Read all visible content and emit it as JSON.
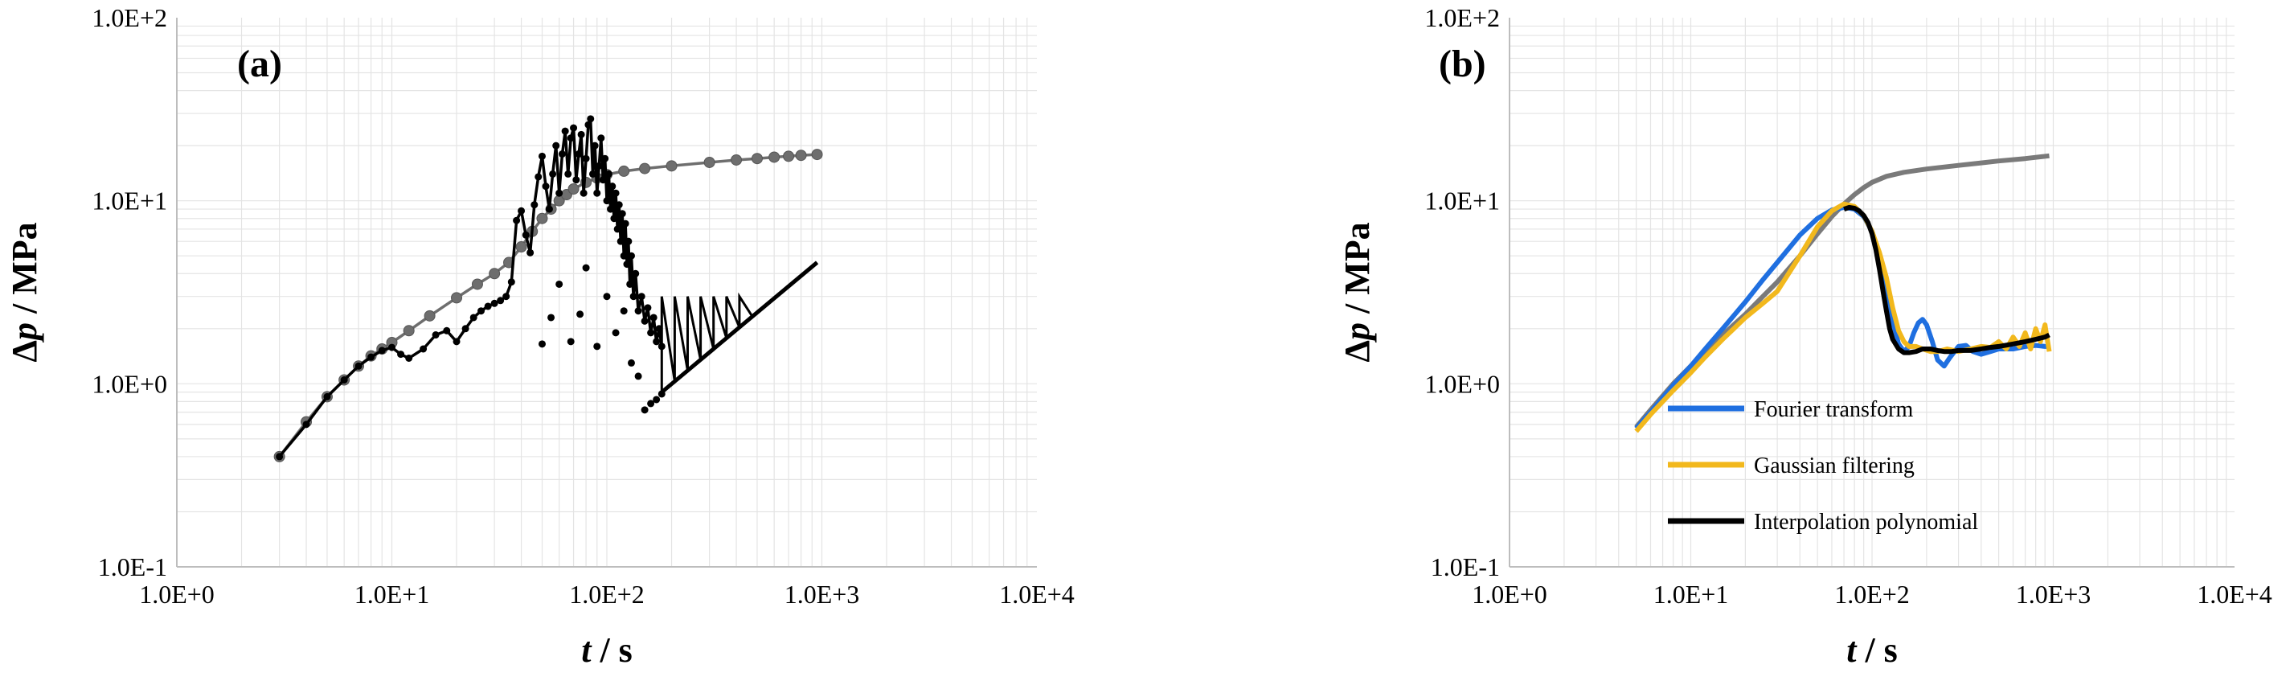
{
  "chart_data": [
    {
      "type": "line",
      "panel_label": "(a)",
      "xlabel": {
        "italic": "t",
        "rest": " / s"
      },
      "ylabel": {
        "prefix": "Δ",
        "italic": "p",
        "rest": " / MPa"
      },
      "xscale": "log",
      "yscale": "log",
      "xlim": [
        1,
        10000
      ],
      "ylim": [
        0.1,
        100
      ],
      "xticks": [
        "1.0E+0",
        "1.0E+1",
        "1.0E+2",
        "1.0E+3",
        "1.0E+4"
      ],
      "yticks": [
        "1.0E-1",
        "1.0E+0",
        "1.0E+1",
        "1.0E+2"
      ],
      "grid": true,
      "series": [
        {
          "color": "#6e6e6e",
          "style": "line-markers",
          "x": [
            3,
            4,
            5,
            6,
            7,
            8,
            9,
            10,
            12,
            15,
            20,
            25,
            30,
            35,
            40,
            45,
            50,
            55,
            60,
            65,
            70,
            80,
            90,
            100,
            120,
            150,
            200,
            300,
            400,
            500,
            600,
            700,
            800,
            950
          ],
          "y": [
            0.4,
            0.62,
            0.85,
            1.05,
            1.25,
            1.42,
            1.55,
            1.68,
            1.95,
            2.35,
            2.95,
            3.5,
            4.0,
            4.6,
            5.6,
            6.8,
            8.0,
            9.0,
            10.0,
            10.8,
            11.6,
            12.6,
            13.3,
            13.9,
            14.5,
            15.0,
            15.5,
            16.2,
            16.7,
            17.0,
            17.3,
            17.5,
            17.7,
            17.9
          ]
        },
        {
          "color": "#000000",
          "style": "line-markers",
          "x": [
            3,
            4,
            5,
            6,
            7,
            8,
            9,
            10,
            11,
            12,
            14,
            16,
            18,
            20,
            22,
            24,
            26,
            28,
            30,
            32,
            34,
            36,
            38,
            40,
            42,
            44,
            46,
            48,
            50,
            52,
            54,
            56,
            58,
            60,
            62,
            64,
            66,
            68,
            70,
            72,
            74,
            76,
            78,
            80,
            82,
            84,
            86,
            88,
            90,
            92,
            94,
            96,
            98,
            100,
            102,
            104,
            106,
            108,
            110,
            112,
            114,
            116,
            118,
            120,
            122,
            124,
            126,
            128,
            130,
            133,
            136,
            140,
            145,
            150,
            155,
            160,
            165,
            170,
            175,
            180
          ],
          "y": [
            0.4,
            0.6,
            0.85,
            1.05,
            1.25,
            1.4,
            1.52,
            1.58,
            1.45,
            1.38,
            1.55,
            1.85,
            1.95,
            1.7,
            2.0,
            2.3,
            2.5,
            2.65,
            2.75,
            2.85,
            3.0,
            3.6,
            7.8,
            8.8,
            6.5,
            5.2,
            9.5,
            13.5,
            17.5,
            12.0,
            9.0,
            14.0,
            20.0,
            11.0,
            18.0,
            24.0,
            14.0,
            22.0,
            25.0,
            13.0,
            18.0,
            23.0,
            11.0,
            17.0,
            26.0,
            28.0,
            14.0,
            20.0,
            11.0,
            15.5,
            22.0,
            13.0,
            17.0,
            10.0,
            14.0,
            9.0,
            12.0,
            8.0,
            11.0,
            7.0,
            9.5,
            6.0,
            8.5,
            5.0,
            7.5,
            4.5,
            6.0,
            3.5,
            5.0,
            3.0,
            4.0,
            2.5,
            3.0,
            2.2,
            2.6,
            1.9,
            2.3,
            1.7,
            2.0,
            1.6
          ]
        }
      ],
      "scatter_points": {
        "color": "#000000",
        "x": [
          50,
          55,
          60,
          68,
          75,
          80,
          90,
          100,
          110,
          120,
          130,
          140,
          150,
          160,
          170,
          180
        ],
        "y": [
          1.65,
          2.3,
          3.5,
          1.7,
          2.4,
          4.3,
          1.6,
          3.0,
          1.9,
          2.5,
          1.3,
          1.1,
          0.72,
          0.78,
          0.82,
          0.88
        ]
      },
      "sawtooth": {
        "color": "#000000",
        "x_start": 180,
        "x_end": 950,
        "y_low_start": 0.9,
        "y_low_end": 4.6,
        "y_high": 3.0,
        "teeth": 12
      }
    },
    {
      "type": "line",
      "panel_label": "(b)",
      "xlabel": {
        "italic": "t",
        "rest": " / s"
      },
      "ylabel": {
        "prefix": "Δ",
        "italic": "p",
        "rest": " / MPa"
      },
      "xscale": "log",
      "yscale": "log",
      "xlim": [
        1,
        10000
      ],
      "ylim": [
        0.1,
        100
      ],
      "xticks": [
        "1.0E+0",
        "1.0E+1",
        "1.0E+2",
        "1.0E+3",
        "1.0E+4"
      ],
      "yticks": [
        "1.0E-1",
        "1.0E+0",
        "1.0E+1",
        "1.0E+2"
      ],
      "grid": true,
      "legend_position": "lower-center",
      "series": [
        {
          "color": "#7a7a7a",
          "x": [
            5,
            6,
            8,
            10,
            12,
            15,
            20,
            25,
            30,
            40,
            50,
            60,
            70,
            80,
            90,
            100,
            120,
            150,
            200,
            300,
            400,
            500,
            700,
            950
          ],
          "y": [
            0.58,
            0.72,
            1.0,
            1.25,
            1.5,
            1.85,
            2.4,
            3.0,
            3.6,
            5.0,
            6.6,
            8.2,
            9.6,
            10.8,
            11.8,
            12.6,
            13.6,
            14.3,
            14.9,
            15.6,
            16.1,
            16.5,
            17.0,
            17.6
          ]
        },
        {
          "name": "Fourier transform",
          "color": "#1f6fe0",
          "x": [
            5,
            6,
            8,
            10,
            12,
            15,
            20,
            25,
            30,
            40,
            50,
            60,
            70,
            80,
            90,
            100,
            110,
            120,
            130,
            140,
            150,
            160,
            170,
            180,
            190,
            200,
            215,
            230,
            250,
            270,
            300,
            330,
            360,
            400,
            450,
            500,
            600,
            700,
            800,
            900,
            950
          ],
          "y": [
            0.57,
            0.7,
            0.98,
            1.25,
            1.55,
            2.0,
            2.8,
            3.7,
            4.6,
            6.5,
            8.0,
            8.9,
            9.2,
            9.0,
            8.2,
            6.8,
            5.0,
            3.4,
            2.2,
            1.65,
            1.5,
            1.6,
            1.9,
            2.15,
            2.25,
            2.1,
            1.7,
            1.35,
            1.25,
            1.4,
            1.6,
            1.62,
            1.5,
            1.45,
            1.5,
            1.55,
            1.55,
            1.6,
            1.62,
            1.6,
            1.6
          ]
        },
        {
          "name": "Gaussian filtering",
          "color": "#f2b81c",
          "x": [
            5,
            6,
            8,
            10,
            12,
            15,
            20,
            25,
            30,
            40,
            50,
            60,
            70,
            80,
            90,
            100,
            110,
            120,
            130,
            140,
            150,
            160,
            175,
            190,
            210,
            230,
            260,
            300,
            350,
            400,
            450,
            500,
            550,
            600,
            650,
            700,
            750,
            800,
            850,
            900,
            950
          ],
          "y": [
            0.55,
            0.68,
            0.92,
            1.15,
            1.4,
            1.75,
            2.3,
            2.75,
            3.2,
            5.0,
            7.2,
            8.8,
            9.6,
            9.3,
            8.3,
            6.8,
            5.2,
            3.8,
            2.6,
            1.95,
            1.7,
            1.6,
            1.6,
            1.55,
            1.5,
            1.5,
            1.55,
            1.5,
            1.55,
            1.6,
            1.58,
            1.7,
            1.55,
            1.8,
            1.6,
            1.9,
            1.55,
            2.0,
            1.7,
            2.1,
            1.5
          ]
        },
        {
          "name": "Interpolation polynomial",
          "color": "#000000",
          "x": [
            70,
            75,
            80,
            85,
            90,
            95,
            100,
            105,
            110,
            115,
            120,
            125,
            130,
            140,
            150,
            160,
            175,
            190,
            210,
            230,
            250,
            275,
            300,
            350,
            400,
            450,
            500,
            600,
            700,
            800,
            900,
            950
          ],
          "y": [
            9.0,
            9.2,
            9.1,
            8.8,
            8.3,
            7.6,
            6.6,
            5.4,
            4.2,
            3.2,
            2.5,
            2.0,
            1.75,
            1.55,
            1.48,
            1.48,
            1.5,
            1.55,
            1.55,
            1.52,
            1.5,
            1.5,
            1.52,
            1.52,
            1.55,
            1.58,
            1.6,
            1.65,
            1.7,
            1.75,
            1.8,
            1.85
          ]
        }
      ]
    }
  ]
}
